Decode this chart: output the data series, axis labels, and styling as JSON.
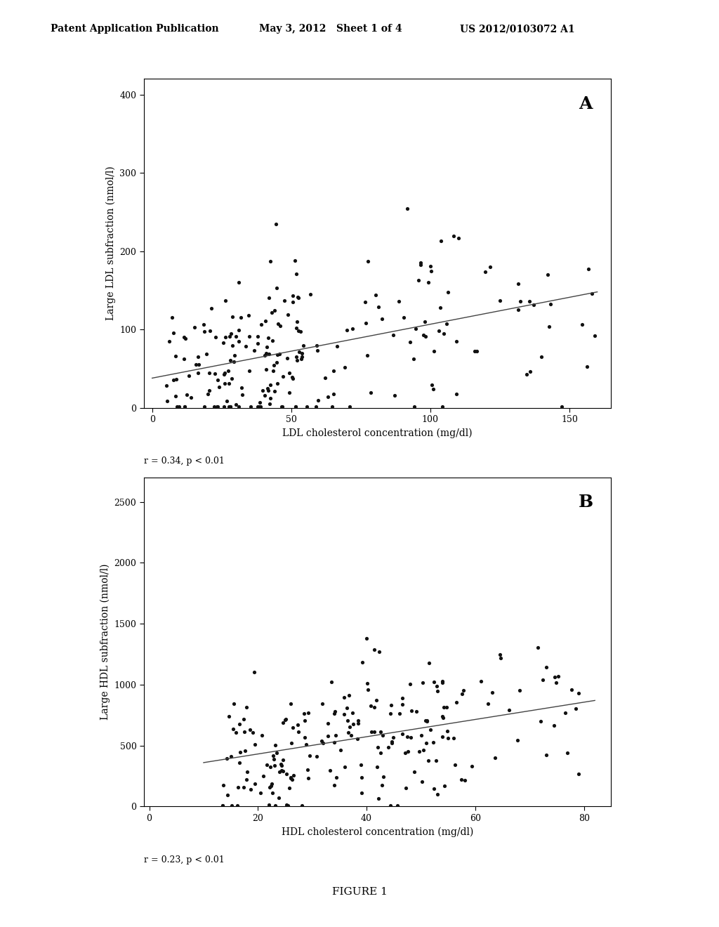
{
  "header_left": "Patent Application Publication",
  "header_mid": "May 3, 2012   Sheet 1 of 4",
  "header_right": "US 2012/0103072 A1",
  "figure_label": "FIGURE 1",
  "plot_A": {
    "label": "A",
    "xlabel": "LDL cholesterol concentration (mg/dl)",
    "ylabel": "Large LDL subfraction (nmol/l)",
    "xlim": [
      -3,
      165
    ],
    "ylim": [
      0,
      420
    ],
    "xticks": [
      0,
      50,
      100,
      150
    ],
    "yticks": [
      0,
      100,
      200,
      300,
      400
    ],
    "annotation": "r = 0.34, p < 0.01",
    "line_x0": 0,
    "line_x1": 160,
    "line_y0": 38,
    "line_y1": 148
  },
  "plot_B": {
    "label": "B",
    "xlabel": "HDL cholesterol concentration (mg/dl)",
    "ylabel": "Large HDL subfraction (nmol/l)",
    "xlim": [
      -1,
      85
    ],
    "ylim": [
      0,
      2700
    ],
    "xticks": [
      0,
      20,
      40,
      60,
      80
    ],
    "yticks": [
      0,
      500,
      1000,
      1500,
      2000,
      2500
    ],
    "annotation": "r = 0.23, p < 0.01",
    "line_x0": 10,
    "line_x1": 82,
    "line_y0": 360,
    "line_y1": 870
  },
  "bg_color": "#ffffff",
  "dot_color": "#111111",
  "line_color": "#444444",
  "dot_size": 14,
  "line_width": 1.0,
  "font_family": "DejaVu Serif"
}
